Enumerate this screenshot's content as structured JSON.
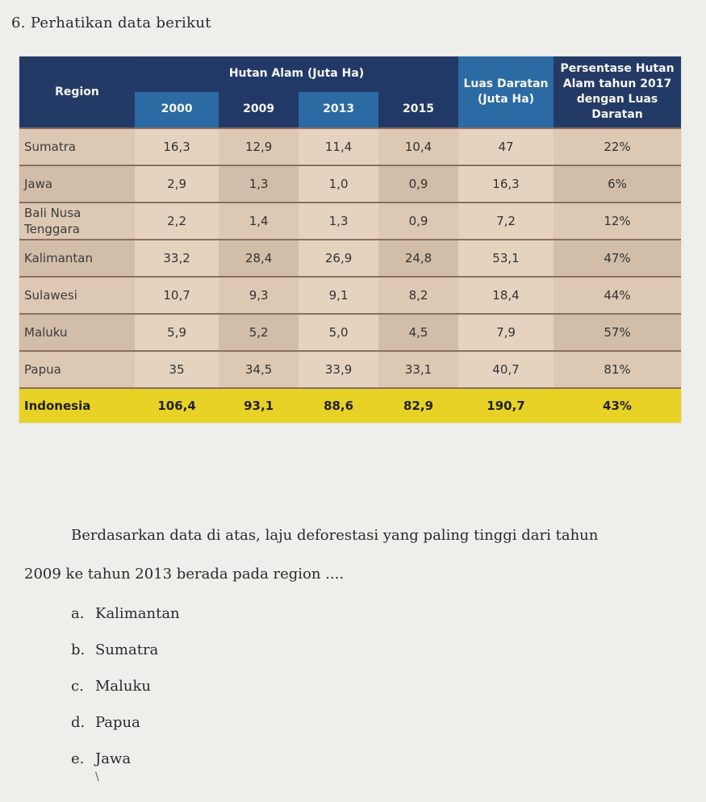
{
  "question_number": "6.",
  "intro": "Perhatikan data berikut",
  "table": {
    "region_header": "Region",
    "forest_header": "Hutan Alam (Juta Ha)",
    "years": [
      "2000",
      "2009",
      "2013",
      "2015"
    ],
    "land_area_header": "Luas Daratan (Juta Ha)",
    "percent_header": "Persentase Hutan Alam tahun 2017 dengan Luas Daratan",
    "rows": [
      {
        "region": "Sumatra",
        "y2000": "16,3",
        "y2009": "12,9",
        "y2013": "11,4",
        "y2015": "10,4",
        "area": "47",
        "pct": "22%"
      },
      {
        "region": "Jawa",
        "y2000": "2,9",
        "y2009": "1,3",
        "y2013": "1,0",
        "y2015": "0,9",
        "area": "16,3",
        "pct": "6%"
      },
      {
        "region": "Bali Nusa Tenggara",
        "y2000": "2,2",
        "y2009": "1,4",
        "y2013": "1,3",
        "y2015": "0,9",
        "area": "7,2",
        "pct": "12%"
      },
      {
        "region": "Kalimantan",
        "y2000": "33,2",
        "y2009": "28,4",
        "y2013": "26,9",
        "y2015": "24,8",
        "area": "53,1",
        "pct": "47%"
      },
      {
        "region": "Sulawesi",
        "y2000": "10,7",
        "y2009": "9,3",
        "y2013": "9,1",
        "y2015": "8,2",
        "area": "18,4",
        "pct": "44%"
      },
      {
        "region": "Maluku",
        "y2000": "5,9",
        "y2009": "5,2",
        "y2013": "5,0",
        "y2015": "4,5",
        "area": "7,9",
        "pct": "57%"
      },
      {
        "region": "Papua",
        "y2000": "35",
        "y2009": "34,5",
        "y2013": "33,9",
        "y2015": "33,1",
        "area": "40,7",
        "pct": "81%"
      }
    ],
    "total": {
      "region": "Indonesia",
      "y2000": "106,4",
      "y2009": "93,1",
      "y2013": "88,6",
      "y2015": "82,9",
      "area": "190,7",
      "pct": "43%"
    }
  },
  "question": {
    "line1": "Berdasarkan data di atas, laju deforestasi yang paling tinggi dari tahun",
    "line2": "2009 ke tahun 2013 berada pada region ...."
  },
  "options": [
    {
      "letter": "a.",
      "text": "Kalimantan"
    },
    {
      "letter": "b.",
      "text": "Sumatra"
    },
    {
      "letter": "c.",
      "text": "Maluku"
    },
    {
      "letter": "d.",
      "text": "Papua"
    },
    {
      "letter": "e.",
      "text": "Jawa"
    }
  ],
  "colors": {
    "header_navy": "#243a66",
    "header_blue": "#2b6aa3",
    "body_tan": "#dcc8b3",
    "total_yellow": "#e8d226"
  }
}
